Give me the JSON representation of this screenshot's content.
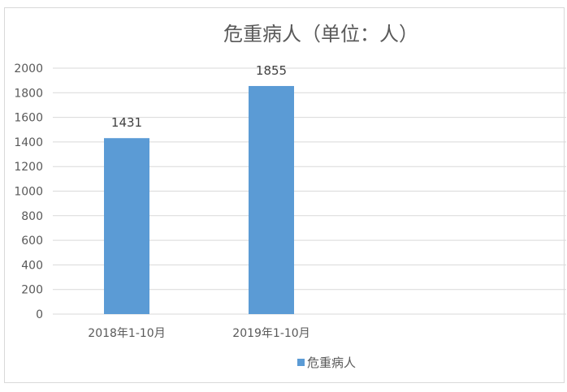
{
  "chart_data": {
    "type": "bar",
    "title": "危重病人（单位：人）",
    "categories": [
      "2018年1-10月",
      "2019年1-10月"
    ],
    "series": [
      {
        "name": "危重病人",
        "values": [
          1431,
          1855
        ],
        "color": "#5b9bd5"
      }
    ],
    "ylim": [
      0,
      2000
    ],
    "yticks": [
      0,
      200,
      400,
      600,
      800,
      1000,
      1200,
      1400,
      1600,
      1800,
      2000
    ],
    "grid": true,
    "legend": "bottom",
    "data_labels": true
  }
}
